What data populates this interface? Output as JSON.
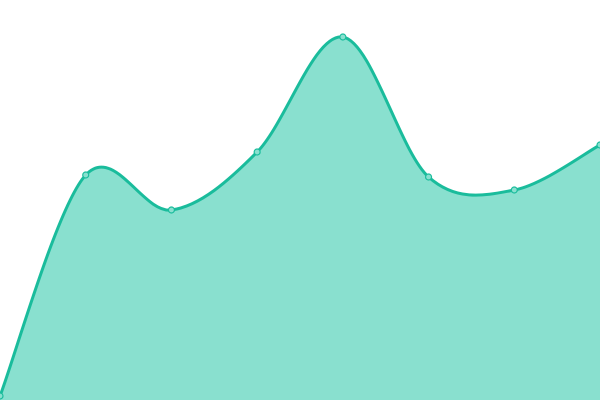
{
  "chart_data": {
    "type": "area",
    "x": [
      0,
      1,
      2,
      3,
      4,
      5,
      6,
      7
    ],
    "series": [
      {
        "values": [
          4,
          225,
          190,
          248,
          363,
          223,
          210,
          255
        ]
      }
    ],
    "ylim": [
      0,
      400
    ],
    "xlim": [
      0,
      7
    ],
    "curve": "smooth",
    "markers": true,
    "grid": false,
    "axes_visible": false,
    "colors": {
      "stroke": "#1abc9c",
      "fill": "#89e0cf",
      "marker_fill": "#89e0cf"
    }
  }
}
